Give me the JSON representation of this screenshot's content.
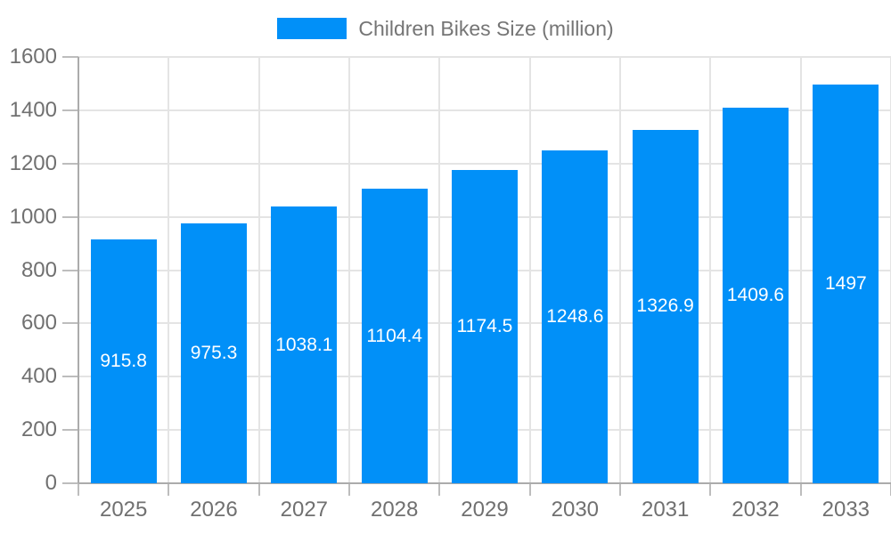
{
  "chart_data": {
    "type": "bar",
    "title": "Children Bikes Size (million)",
    "categories": [
      "2025",
      "2026",
      "2027",
      "2028",
      "2029",
      "2030",
      "2031",
      "2032",
      "2033"
    ],
    "series": [
      {
        "name": "Children Bikes Size (million)",
        "values": [
          915.8,
          975.3,
          1038.1,
          1104.4,
          1174.5,
          1248.6,
          1326.9,
          1409.6,
          1497
        ]
      }
    ],
    "value_labels": [
      "915.8",
      "975.3",
      "1038.1",
      "1104.4",
      "1174.5",
      "1248.6",
      "1326.9",
      "1409.6",
      "1497"
    ],
    "xlabel": "",
    "ylabel": "",
    "ylim": [
      0,
      1600
    ],
    "ytick_step": 200,
    "ytick_labels": [
      "0",
      "200",
      "400",
      "600",
      "800",
      "1000",
      "1200",
      "1400",
      "1600"
    ],
    "grid": true,
    "legend_position": "top-center",
    "colors": {
      "bar": "#0190F8",
      "value_label": "#FFFFFF",
      "axis_text": "#707070",
      "legend_text": "#757575",
      "axis_line": "#ABABAB",
      "gridline": "#E4E4E4",
      "background": "#FFFFFF"
    }
  }
}
